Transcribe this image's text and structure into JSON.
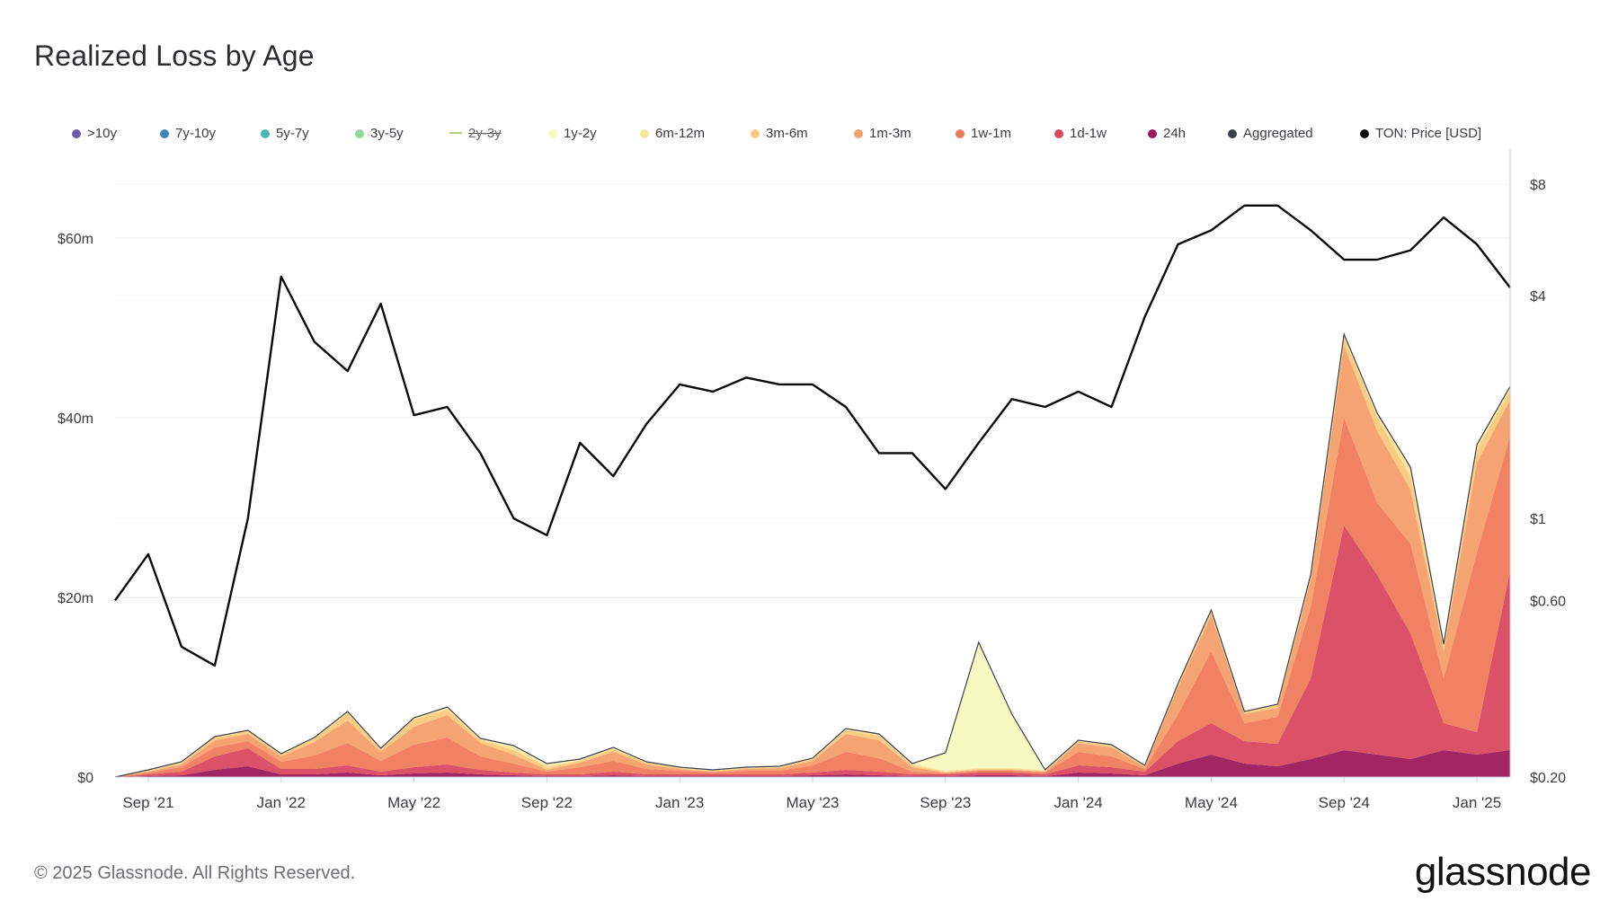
{
  "title": "Realized Loss by Age",
  "footer": "© 2025 Glassnode. All Rights Reserved.",
  "brand": "glassnode",
  "legend": [
    {
      "label": ">10y",
      "color": "#6a5aa8",
      "disabled": false
    },
    {
      "label": "7y-10y",
      "color": "#3b86b8",
      "disabled": false
    },
    {
      "label": "5y-7y",
      "color": "#4ab8b0",
      "disabled": false
    },
    {
      "label": "3y-5y",
      "color": "#93d4a0",
      "disabled": false
    },
    {
      "label": "2y-3y",
      "color": "#a9d27a",
      "disabled": true
    },
    {
      "label": "1y-2y",
      "color": "#f6f9bd",
      "disabled": false
    },
    {
      "label": "6m-12m",
      "color": "#fbe49c",
      "disabled": false
    },
    {
      "label": "3m-6m",
      "color": "#f9c97c",
      "disabled": false
    },
    {
      "label": "1m-3m",
      "color": "#f59e6b",
      "disabled": false
    },
    {
      "label": "1w-1m",
      "color": "#ef7a5a",
      "disabled": false
    },
    {
      "label": "1d-1w",
      "color": "#d9485f",
      "disabled": false
    },
    {
      "label": "24h",
      "color": "#9e1a5c",
      "disabled": false
    },
    {
      "label": "Aggregated",
      "color": "#3d3f4a",
      "disabled": false
    },
    {
      "label": "TON: Price [USD]",
      "color": "#111111",
      "disabled": false
    }
  ],
  "chart_data": {
    "type": "area",
    "title": "Realized Loss by Age",
    "x_axis": {
      "ticks": [
        "Sep '21",
        "Jan '22",
        "May '22",
        "Sep '22",
        "Jan '23",
        "May '23",
        "Sep '23",
        "Jan '24",
        "May '24",
        "Sep '24",
        "Jan '25"
      ],
      "range": [
        "2021-08",
        "2025-02"
      ]
    },
    "y_axis_left": {
      "ticks": [
        "$0",
        "$20m",
        "$40m",
        "$60m"
      ],
      "range_musd": [
        0,
        70
      ]
    },
    "y_axis_right": {
      "scale": "log",
      "ticks": [
        "$0.20",
        "$0.60",
        "$1",
        "$4",
        "$8"
      ],
      "range_usd": [
        0.2,
        10
      ]
    },
    "x": [
      "2021-08",
      "2021-09",
      "2021-10",
      "2021-11",
      "2021-12",
      "2022-01",
      "2022-02",
      "2022-03",
      "2022-04",
      "2022-05",
      "2022-06",
      "2022-07",
      "2022-08",
      "2022-09",
      "2022-10",
      "2022-11",
      "2022-12",
      "2023-01",
      "2023-02",
      "2023-03",
      "2023-04",
      "2023-05",
      "2023-06",
      "2023-07",
      "2023-08",
      "2023-09",
      "2023-10",
      "2023-11",
      "2023-12",
      "2024-01",
      "2024-02",
      "2024-03",
      "2024-04",
      "2024-05",
      "2024-06",
      "2024-07",
      "2024-08",
      "2024-09",
      "2024-10",
      "2024-11",
      "2024-12",
      "2025-01",
      "2025-02"
    ],
    "series": [
      {
        "name": "24h",
        "values_musd": [
          0,
          0.1,
          0.2,
          0.8,
          1.2,
          0.3,
          0.3,
          0.5,
          0.2,
          0.4,
          0.5,
          0.3,
          0.2,
          0.1,
          0.1,
          0.2,
          0.1,
          0.1,
          0.1,
          0.1,
          0.1,
          0.2,
          0.3,
          0.2,
          0.1,
          0.1,
          0.2,
          0.2,
          0.1,
          0.5,
          0.4,
          0.2,
          1.5,
          2.5,
          1.5,
          1.2,
          2.0,
          3.0,
          2.5,
          2.0,
          3.0,
          2.5,
          3.0
        ]
      },
      {
        "name": "1d-1w",
        "values_musd": [
          0,
          0.2,
          0.4,
          1.5,
          2.0,
          0.6,
          0.6,
          0.8,
          0.4,
          0.7,
          0.9,
          0.5,
          0.3,
          0.2,
          0.2,
          0.4,
          0.2,
          0.2,
          0.2,
          0.2,
          0.2,
          0.3,
          0.5,
          0.4,
          0.2,
          0.2,
          0.3,
          0.3,
          0.2,
          0.8,
          0.7,
          0.4,
          2.5,
          3.5,
          2.5,
          2.5,
          9.0,
          25.0,
          20.0,
          14.0,
          3.0,
          2.5,
          20.0
        ]
      },
      {
        "name": "1w-1m",
        "values_musd": [
          0,
          0.2,
          0.5,
          1.0,
          0.8,
          0.8,
          1.5,
          2.5,
          1.2,
          2.5,
          3.0,
          1.5,
          1.0,
          0.3,
          0.8,
          1.2,
          0.6,
          0.4,
          0.2,
          0.4,
          0.4,
          0.8,
          2.0,
          1.5,
          0.3,
          0.1,
          0.2,
          0.2,
          0.2,
          1.5,
          1.2,
          0.3,
          3.0,
          8.0,
          2.0,
          3.0,
          8.0,
          12.0,
          8.0,
          10.0,
          5.0,
          20.0,
          15.0
        ]
      },
      {
        "name": "1m-3m",
        "values_musd": [
          0,
          0.1,
          0.3,
          0.8,
          0.8,
          0.6,
          1.5,
          2.5,
          1.0,
          2.0,
          2.5,
          1.5,
          1.0,
          0.2,
          0.5,
          1.0,
          0.5,
          0.2,
          0.1,
          0.2,
          0.3,
          0.5,
          2.0,
          2.0,
          0.5,
          0.1,
          0.1,
          0.1,
          0.1,
          1.0,
          1.0,
          0.2,
          3.0,
          4.0,
          1.0,
          1.0,
          3.0,
          8.0,
          8.0,
          6.0,
          3.0,
          10.0,
          4.0
        ]
      },
      {
        "name": "3m-6m",
        "values_musd": [
          0,
          0.1,
          0.2,
          0.3,
          0.3,
          0.2,
          0.4,
          0.8,
          0.3,
          0.8,
          0.6,
          0.3,
          0.5,
          0.3,
          0.2,
          0.3,
          0.2,
          0.1,
          0.1,
          0.1,
          0.1,
          0.2,
          0.4,
          0.5,
          0.2,
          0.1,
          0.1,
          0.1,
          0.1,
          0.2,
          0.2,
          0.1,
          0.3,
          0.5,
          0.2,
          0.3,
          0.4,
          1.0,
          1.5,
          1.5,
          0.5,
          1.5,
          1.0
        ]
      },
      {
        "name": "6m-12m",
        "values_musd": [
          0,
          0.1,
          0.1,
          0.1,
          0.1,
          0.1,
          0.1,
          0.2,
          0.1,
          0.2,
          0.3,
          0.2,
          0.3,
          0.2,
          0.1,
          0.1,
          0.1,
          0.1,
          0.1,
          0.1,
          0.1,
          0.1,
          0.2,
          0.2,
          0.2,
          0.1,
          0.1,
          0.1,
          0.1,
          0.1,
          0.1,
          0.1,
          0.1,
          0.1,
          0.1,
          0.1,
          0.2,
          0.3,
          0.5,
          1.0,
          0.3,
          0.5,
          0.5
        ]
      },
      {
        "name": "1y-2y",
        "values_musd": [
          0,
          0,
          0,
          0,
          0,
          0,
          0,
          0,
          0,
          0,
          0,
          0,
          0.2,
          0.2,
          0.1,
          0.1,
          0,
          0,
          0,
          0,
          0,
          0,
          0,
          0,
          0,
          2.0,
          14.0,
          6.0,
          0,
          0,
          0,
          0,
          0,
          0,
          0,
          0,
          0,
          0,
          0,
          0,
          0,
          0,
          0
        ]
      }
    ],
    "price_usd": [
      0.6,
      0.8,
      0.45,
      0.4,
      1.0,
      4.5,
      3.0,
      2.5,
      3.8,
      1.9,
      2.0,
      1.5,
      1.0,
      0.9,
      1.6,
      1.3,
      1.8,
      2.3,
      2.2,
      2.4,
      2.3,
      2.3,
      2.0,
      1.5,
      1.5,
      1.2,
      1.6,
      2.1,
      2.0,
      2.2,
      2.0,
      3.5,
      5.5,
      6.0,
      7.0,
      7.0,
      6.0,
      5.0,
      5.0,
      5.3,
      6.5,
      5.5,
      4.2
    ]
  }
}
